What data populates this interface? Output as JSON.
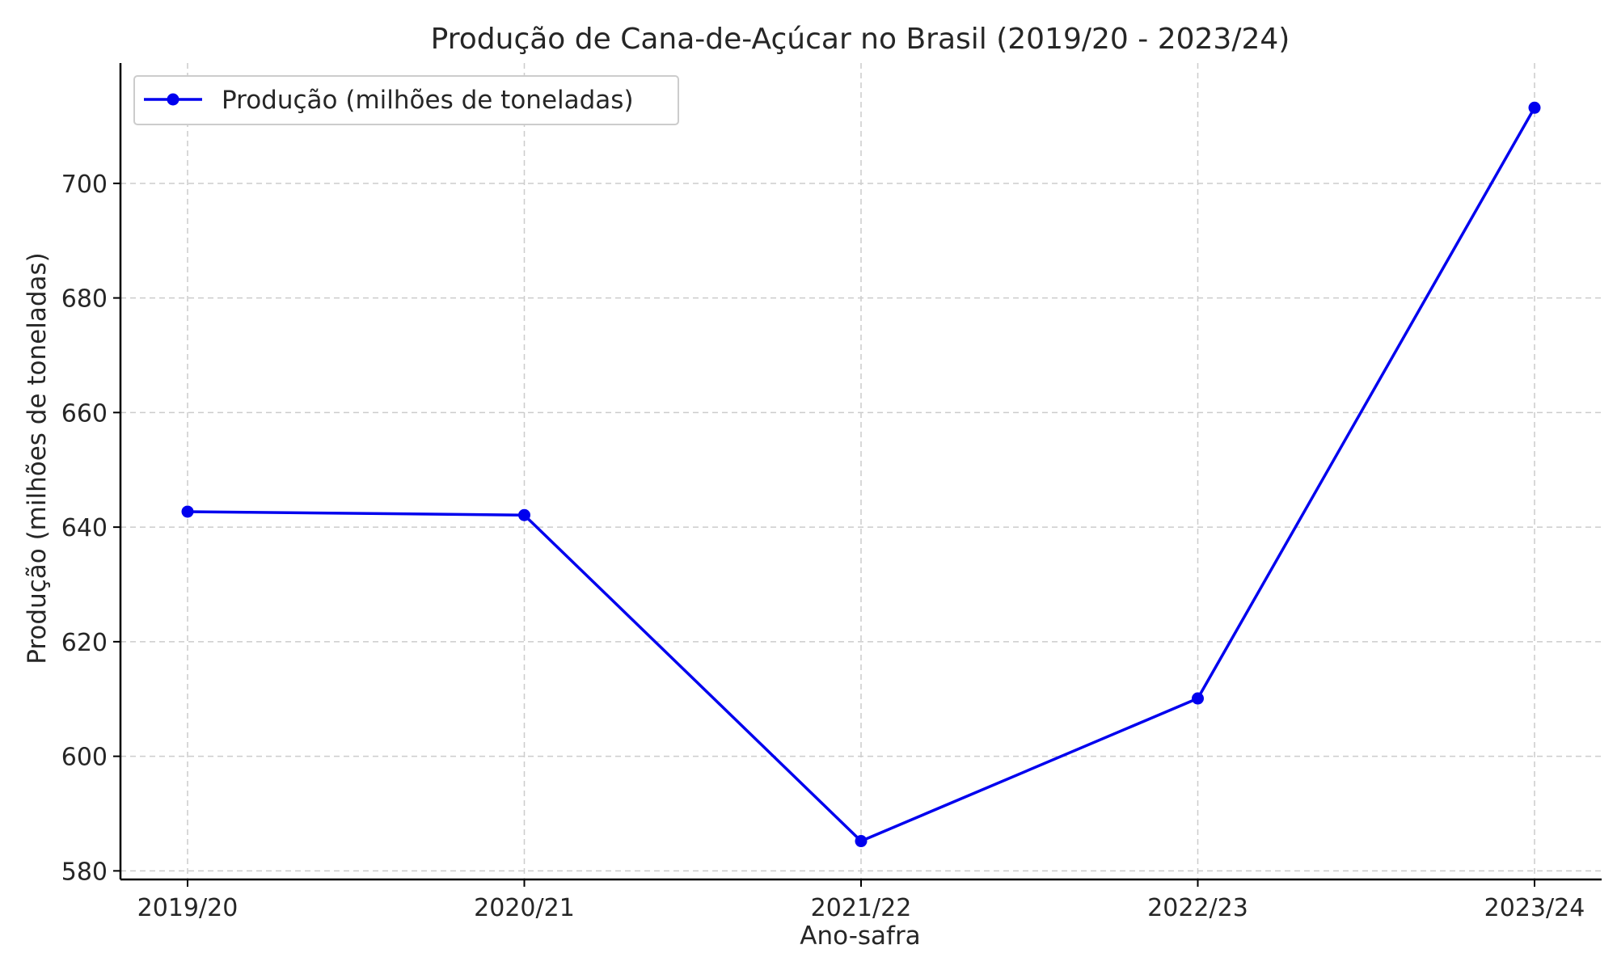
{
  "chart_data": {
    "type": "line",
    "title": "Produção de Cana-de-Açúcar no Brasil (2019/20 - 2023/24)",
    "xlabel": "Ano-safra",
    "ylabel": "Produção (milhões de toneladas)",
    "categories": [
      "2019/20",
      "2020/21",
      "2021/22",
      "2022/23",
      "2023/24"
    ],
    "series": [
      {
        "name": "Produção (milhões de toneladas)",
        "values": [
          642.7,
          642.1,
          585.2,
          610.1,
          713.2
        ],
        "color": "#0000ee"
      }
    ],
    "ylim": [
      578.5,
      721
    ],
    "yticks": [
      580,
      600,
      620,
      640,
      660,
      680,
      700
    ],
    "grid": true,
    "legend": "top-left"
  }
}
